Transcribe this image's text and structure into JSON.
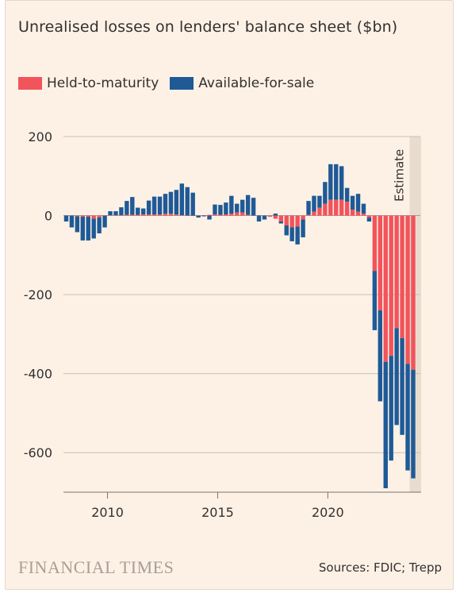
{
  "title": "Unrealised losses on lenders' balance sheet ($bn)",
  "legend": {
    "htm_label": "Held-to-maturity",
    "afs_label": "Available-for-sale"
  },
  "colors": {
    "htm": "#f2545b",
    "afs": "#1f5a96",
    "estimate_band": "#e8dccf",
    "grid": "#c9bfb6",
    "zero": "#a89e95"
  },
  "estimate_label": "Estimate",
  "footer": {
    "logo": "FINANCIAL TIMES",
    "source": "Sources: FDIC; Trepp"
  },
  "chart_data": {
    "type": "bar",
    "stacked": true,
    "frequency": "quarterly",
    "x_start": "2008 Q1",
    "x_end": "2023 Q4",
    "estimate_from": "2023 Q4",
    "xticks": [
      "2010",
      "2015",
      "2020"
    ],
    "yticks": [
      "200",
      "0",
      "-200",
      "-400",
      "-600"
    ],
    "ylim": [
      -700,
      200
    ],
    "series": [
      {
        "name": "Held-to-maturity",
        "values": [
          0,
          0,
          -2,
          -3,
          -3,
          -8,
          -5,
          0,
          1,
          1,
          1,
          2,
          2,
          2,
          3,
          3,
          3,
          3,
          5,
          5,
          3,
          1,
          0,
          -1,
          0,
          1,
          2,
          3,
          2,
          3,
          5,
          8,
          8,
          2,
          0,
          1,
          0,
          -3,
          -8,
          -15,
          -25,
          -30,
          -28,
          -10,
          2,
          10,
          20,
          30,
          40,
          40,
          40,
          35,
          15,
          10,
          5,
          -5,
          -140,
          -240,
          -370,
          -355,
          -285,
          -310,
          -375,
          -390
        ]
      },
      {
        "name": "Available-for-sale",
        "values": [
          -15,
          -30,
          -40,
          -60,
          -60,
          -50,
          -40,
          -30,
          10,
          10,
          20,
          35,
          45,
          18,
          15,
          35,
          45,
          45,
          50,
          55,
          62,
          80,
          72,
          58,
          -5,
          -2,
          -10,
          25,
          25,
          30,
          45,
          22,
          32,
          50,
          45,
          -15,
          -10,
          0,
          5,
          -5,
          -25,
          -35,
          -45,
          -45,
          35,
          40,
          30,
          55,
          90,
          90,
          85,
          35,
          35,
          45,
          25,
          -10,
          -150,
          -230,
          -320,
          -265,
          -245,
          -245,
          -270,
          -275
        ]
      }
    ]
  }
}
